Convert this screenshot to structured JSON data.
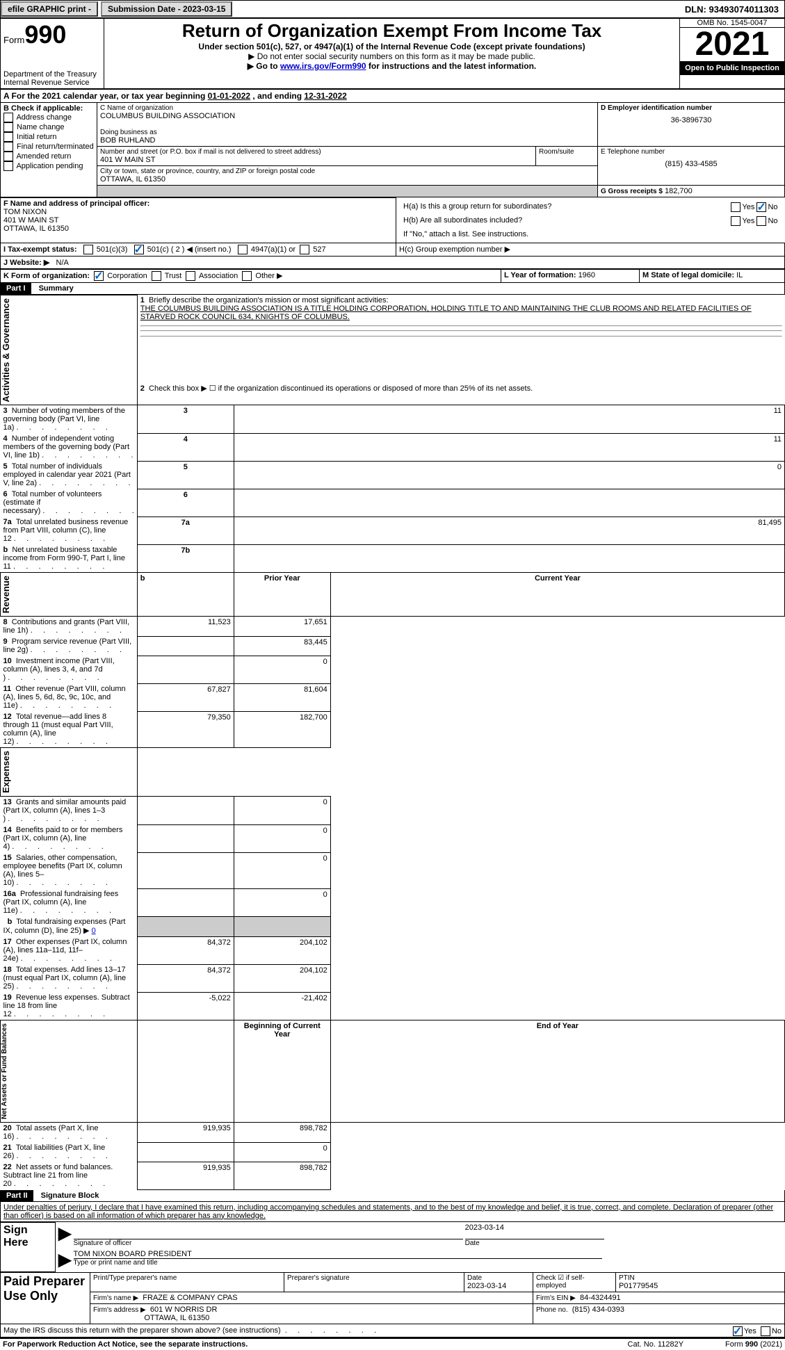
{
  "topbar": {
    "efile": "efile GRAPHIC print -",
    "subdate_label": "Submission Date - 2023-03-15",
    "dln_label": "DLN: 93493074011303"
  },
  "header": {
    "form_word": "Form",
    "form_num": "990",
    "dept": "Department of the Treasury Internal Revenue Service",
    "title": "Return of Organization Exempt From Income Tax",
    "subtitle": "Under section 501(c), 527, or 4947(a)(1) of the Internal Revenue Code (except private foundations)",
    "warn": "▶ Do not enter social security numbers on this form as it may be made public.",
    "goto_pre": "▶ Go to ",
    "goto_link": "www.irs.gov/Form990",
    "goto_post": " for instructions and the latest information.",
    "omb": "OMB No. 1545-0047",
    "year": "2021",
    "inspect": "Open to Public Inspection"
  },
  "lineA": {
    "pre": "A For the 2021 calendar year, or tax year beginning ",
    "begin": "01-01-2022",
    "mid": " , and ending ",
    "end": "12-31-2022"
  },
  "B": {
    "label": "B Check if applicable:",
    "items": [
      "Address change",
      "Name change",
      "Initial return",
      "Final return/terminated",
      "Amended return",
      "Application pending"
    ]
  },
  "C": {
    "name_label": "C Name of organization",
    "name": "COLUMBUS BUILDING ASSOCIATION",
    "dba_label": "Doing business as",
    "dba": "BOB RUHLAND",
    "street_label": "Number and street (or P.O. box if mail is not delivered to street address)",
    "room_label": "Room/suite",
    "street": "401 W MAIN ST",
    "city_label": "City or town, state or province, country, and ZIP or foreign postal code",
    "city": "OTTAWA, IL  61350"
  },
  "D": {
    "label": "D Employer identification number",
    "value": "36-3896730"
  },
  "E": {
    "label": "E Telephone number",
    "value": "(815) 433-4585"
  },
  "G": {
    "label": "G Gross receipts $",
    "value": "182,700"
  },
  "F": {
    "label": "F  Name and address of principal officer:",
    "name": "TOM NIXON",
    "addr1": "401 W MAIN ST",
    "addr2": "OTTAWA, IL  61350"
  },
  "H": {
    "a": "H(a)  Is this a group return for subordinates?",
    "b": "H(b)  Are all subordinates included?",
    "bnote": "If \"No,\" attach a list. See instructions.",
    "c": "H(c)  Group exemption number ▶",
    "yes": "Yes",
    "no": "No"
  },
  "I": {
    "label": "I    Tax-exempt status:",
    "o1": "501(c)(3)",
    "o2": "501(c) ( 2 ) ◀ (insert no.)",
    "o3": "4947(a)(1) or",
    "o4": "527"
  },
  "J": {
    "label": "J    Website: ▶",
    "value": "N/A"
  },
  "K": {
    "label": "K Form of organization:",
    "corp": "Corporation",
    "trust": "Trust",
    "assoc": "Association",
    "other": "Other ▶"
  },
  "L": {
    "label": "L Year of formation: ",
    "value": "1960"
  },
  "M": {
    "label": "M State of legal domicile: ",
    "value": "IL"
  },
  "part1": {
    "tag": "Part I",
    "title": "Summary"
  },
  "summary": {
    "line1_label": "Briefly describe the organization's mission or most significant activities:",
    "line1_text": "THE COLUMBUS BUILDING ASSOCIATION IS A TITLE HOLDING CORPORATION, HOLDING TITLE TO AND MAINTAINING THE CLUB ROOMS AND RELATED FACILITIES OF STARVED ROCK COUNCIL 634, KNIGHTS OF COLUMBUS.",
    "line2": "Check this box ▶ ☐  if the organization discontinued its operations or disposed of more than 25% of its net assets.",
    "rows_single": [
      {
        "n": "3",
        "label": "Number of voting members of the governing body (Part VI, line 1a)",
        "box": "3",
        "val": "11"
      },
      {
        "n": "4",
        "label": "Number of independent voting members of the governing body (Part VI, line 1b)",
        "box": "4",
        "val": "11"
      },
      {
        "n": "5",
        "label": "Total number of individuals employed in calendar year 2021 (Part V, line 2a)",
        "box": "5",
        "val": "0"
      },
      {
        "n": "6",
        "label": "Total number of volunteers (estimate if necessary)",
        "box": "6",
        "val": ""
      },
      {
        "n": "7a",
        "label": "Total unrelated business revenue from Part VIII, column (C), line 12",
        "box": "7a",
        "val": "81,495"
      },
      {
        "n": "b",
        "label": "Net unrelated business taxable income from Form 990-T, Part I, line 11",
        "box": "7b",
        "val": ""
      }
    ],
    "colhead_prior": "Prior Year",
    "colhead_current": "Current Year",
    "rows_two": [
      {
        "n": "8",
        "label": "Contributions and grants (Part VIII, line 1h)",
        "prior": "11,523",
        "curr": "17,651"
      },
      {
        "n": "9",
        "label": "Program service revenue (Part VIII, line 2g)",
        "prior": "",
        "curr": "83,445"
      },
      {
        "n": "10",
        "label": "Investment income (Part VIII, column (A), lines 3, 4, and 7d )",
        "prior": "",
        "curr": "0"
      },
      {
        "n": "11",
        "label": "Other revenue (Part VIII, column (A), lines 5, 6d, 8c, 9c, 10c, and 11e)",
        "prior": "67,827",
        "curr": "81,604"
      },
      {
        "n": "12",
        "label": "Total revenue—add lines 8 through 11 (must equal Part VIII, column (A), line 12)",
        "prior": "79,350",
        "curr": "182,700"
      },
      {
        "n": "13",
        "label": "Grants and similar amounts paid (Part IX, column (A), lines 1–3 )",
        "prior": "",
        "curr": "0"
      },
      {
        "n": "14",
        "label": "Benefits paid to or for members (Part IX, column (A), line 4)",
        "prior": "",
        "curr": "0"
      },
      {
        "n": "15",
        "label": "Salaries, other compensation, employee benefits (Part IX, column (A), lines 5–10)",
        "prior": "",
        "curr": "0"
      },
      {
        "n": "16a",
        "label": "Professional fundraising fees (Part IX, column (A), line 11e)",
        "prior": "",
        "curr": "0"
      }
    ],
    "line16b_n": "b",
    "line16b": "Total fundraising expenses (Part IX, column (D), line 25) ▶",
    "line16b_val": "0",
    "rows_two_b": [
      {
        "n": "17",
        "label": "Other expenses (Part IX, column (A), lines 11a–11d, 11f–24e)",
        "prior": "84,372",
        "curr": "204,102"
      },
      {
        "n": "18",
        "label": "Total expenses. Add lines 13–17 (must equal Part IX, column (A), line 25)",
        "prior": "84,372",
        "curr": "204,102"
      },
      {
        "n": "19",
        "label": "Revenue less expenses. Subtract line 18 from line 12",
        "prior": "-5,022",
        "curr": "-21,402"
      }
    ],
    "colhead_begin": "Beginning of Current Year",
    "colhead_end": "End of Year",
    "rows_na": [
      {
        "n": "20",
        "label": "Total assets (Part X, line 16)",
        "prior": "919,935",
        "curr": "898,782"
      },
      {
        "n": "21",
        "label": "Total liabilities (Part X, line 26)",
        "prior": "",
        "curr": "0"
      },
      {
        "n": "22",
        "label": "Net assets or fund balances. Subtract line 21 from line 20",
        "prior": "919,935",
        "curr": "898,782"
      }
    ]
  },
  "sidebars": {
    "ag": "Activities & Governance",
    "rev": "Revenue",
    "exp": "Expenses",
    "na": "Net Assets or Fund Balances"
  },
  "part2": {
    "tag": "Part II",
    "title": "Signature Block"
  },
  "perjury": "Under penalties of perjury, I declare that I have examined this return, including accompanying schedules and statements, and to the best of my knowledge and belief, it is true, correct, and complete. Declaration of preparer (other than officer) is based on all information of which preparer has any knowledge.",
  "sign": {
    "here": "Sign Here",
    "sig_officer": "Signature of officer",
    "date": "Date",
    "sig_date": "2023-03-14",
    "name_title": "TOM NIXON  BOARD PRESIDENT",
    "type_name": "Type or print name and title"
  },
  "preparer": {
    "label": "Paid Preparer Use Only",
    "print_label": "Print/Type preparer's name",
    "sig_label": "Preparer's signature",
    "date_label": "Date",
    "date_val": "2023-03-14",
    "check_label": "Check ☑ if self-employed",
    "ptin_label": "PTIN",
    "ptin": "P01779545",
    "firm_name_label": "Firm's name     ▶",
    "firm_name": "FRAZE & COMPANY CPAS",
    "ein_label": "Firm's EIN ▶",
    "ein": "84-4324491",
    "firm_addr_label": "Firm's address ▶",
    "firm_addr1": "601 W NORRIS DR",
    "firm_addr2": "OTTAWA, IL  61350",
    "phone_label": "Phone no.",
    "phone": "(815) 434-0393"
  },
  "discuss": {
    "q": "May the IRS discuss this return with the preparer shown above? (see instructions)",
    "yes": "Yes",
    "no": "No"
  },
  "footer": {
    "left": "For Paperwork Reduction Act Notice, see the separate instructions.",
    "mid": "Cat. No. 11282Y",
    "right": "Form 990 (2021)"
  }
}
